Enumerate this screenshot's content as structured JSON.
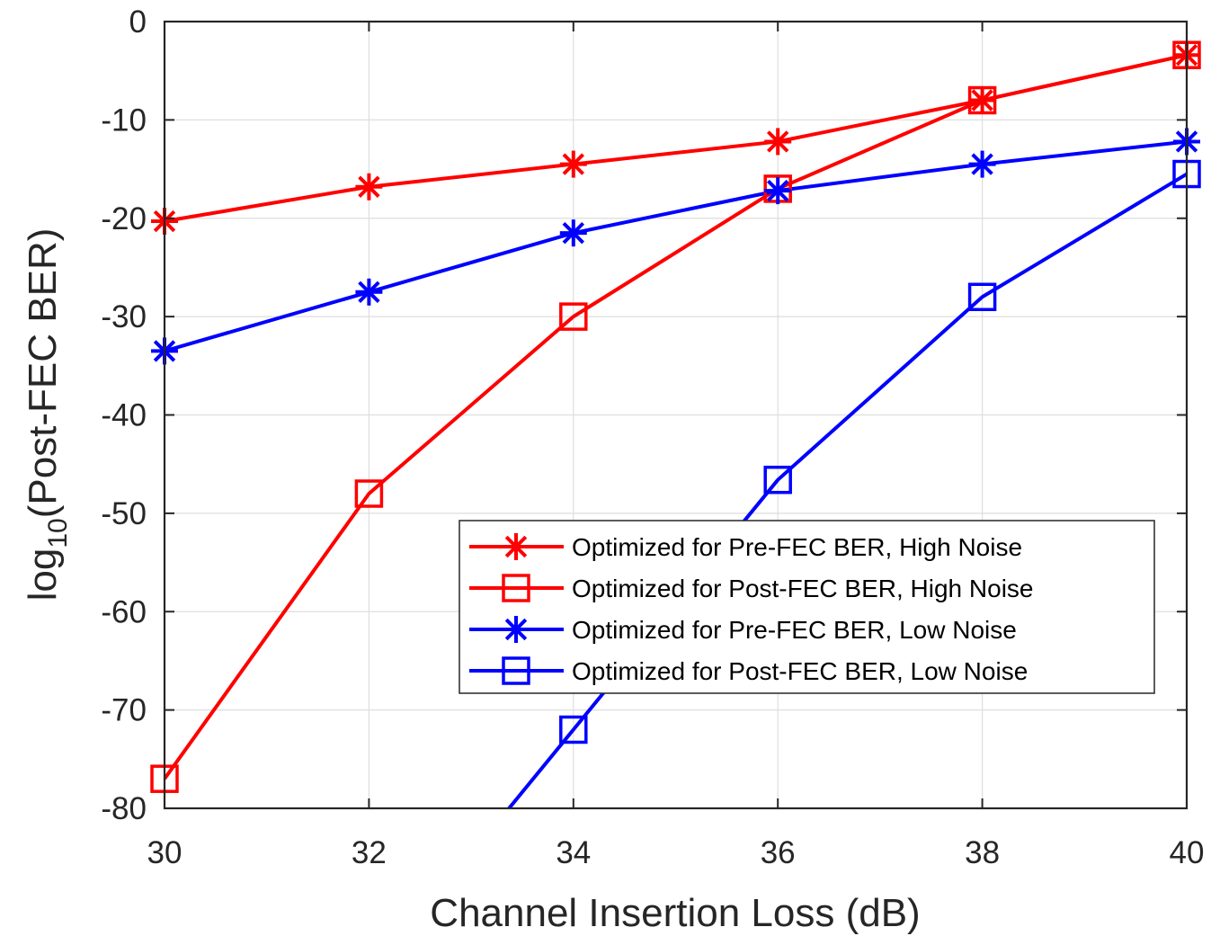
{
  "chart_data": {
    "type": "line",
    "title": "",
    "xlabel": "Channel Insertion Loss (dB)",
    "ylabel": {
      "prefix": "log",
      "subscript": "10",
      "suffix": "(Post-FEC BER)"
    },
    "x": [
      30,
      32,
      34,
      36,
      38,
      40
    ],
    "xlim": [
      30,
      40
    ],
    "ylim": [
      -80,
      0
    ],
    "xticks": [
      30,
      32,
      34,
      36,
      38,
      40
    ],
    "yticks": [
      0,
      -10,
      -20,
      -30,
      -40,
      -50,
      -60,
      -70,
      -80
    ],
    "grid": true,
    "legend_position": "lower-right",
    "series": [
      {
        "name": "Optimized for Pre-FEC BER, High Noise",
        "color": "#ff0000",
        "marker": "asterisk",
        "x": [
          30,
          32,
          34,
          36,
          38,
          40
        ],
        "y": [
          -20.3,
          -16.8,
          -14.5,
          -12.2,
          -8.0,
          -3.4
        ]
      },
      {
        "name": "Optimized for Post-FEC BER, High Noise",
        "color": "#ff0000",
        "marker": "square",
        "x": [
          30,
          32,
          34,
          36,
          38,
          40
        ],
        "y": [
          -77.0,
          -48.0,
          -30.0,
          -17.0,
          -8.0,
          -3.4
        ]
      },
      {
        "name": "Optimized for Pre-FEC BER, Low Noise",
        "color": "#0000ff",
        "marker": "asterisk",
        "x": [
          30,
          32,
          34,
          36,
          38,
          40
        ],
        "y": [
          -33.5,
          -27.5,
          -21.5,
          -17.2,
          -14.5,
          -12.2
        ]
      },
      {
        "name": "Optimized for Post-FEC BER, Low Noise",
        "color": "#0000ff",
        "marker": "square",
        "x": [
          34,
          36,
          38,
          40
        ],
        "y": [
          -72.0,
          -46.6,
          -28.0,
          -15.5
        ],
        "extends_below_axis": true
      }
    ]
  }
}
